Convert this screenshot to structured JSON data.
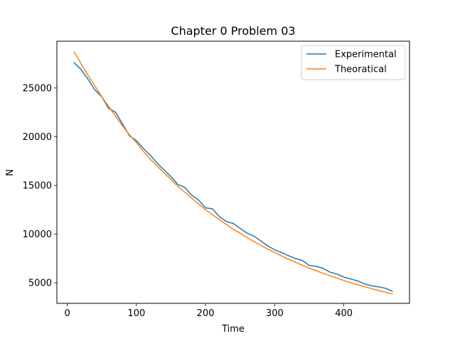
{
  "chart_data": {
    "type": "line",
    "title": "Chapter 0 Problem 03",
    "xlabel": "Time",
    "ylabel": "N",
    "xlim": [
      -15,
      495
    ],
    "ylim": [
      2900,
      29800
    ],
    "xticks": [
      0,
      100,
      200,
      300,
      400
    ],
    "yticks": [
      5000,
      10000,
      15000,
      20000,
      25000
    ],
    "grid": false,
    "legend_position": "top-right",
    "series": [
      {
        "name": "Experimental",
        "color": "#1f77b4",
        "x": [
          10,
          20,
          30,
          40,
          50,
          60,
          70,
          80,
          90,
          100,
          110,
          120,
          130,
          140,
          150,
          160,
          170,
          180,
          190,
          200,
          210,
          220,
          230,
          240,
          250,
          260,
          270,
          280,
          290,
          300,
          310,
          320,
          330,
          340,
          350,
          360,
          370,
          380,
          390,
          400,
          410,
          420,
          430,
          440,
          450,
          460,
          470
        ],
        "values": [
          27600,
          26900,
          25900,
          24800,
          24100,
          22900,
          22500,
          21300,
          20100,
          19600,
          18800,
          18100,
          17300,
          16600,
          15900,
          15100,
          14800,
          14000,
          13500,
          12700,
          12600,
          11800,
          11300,
          11100,
          10600,
          10100,
          9800,
          9300,
          8800,
          8400,
          8100,
          7800,
          7500,
          7300,
          6800,
          6700,
          6500,
          6100,
          5900,
          5600,
          5400,
          5200,
          4900,
          4700,
          4600,
          4450,
          4150
        ]
      },
      {
        "name": "Theoratical",
        "color": "#ff7f0e",
        "x": [
          10,
          20,
          30,
          40,
          50,
          60,
          70,
          80,
          90,
          100,
          110,
          120,
          130,
          140,
          150,
          160,
          170,
          180,
          190,
          200,
          210,
          220,
          230,
          240,
          250,
          260,
          270,
          280,
          290,
          300,
          310,
          320,
          330,
          340,
          350,
          360,
          370,
          380,
          390,
          400,
          410,
          420,
          430,
          440,
          450,
          460,
          470
        ],
        "values": [
          28700,
          27500,
          26300,
          25200,
          24100,
          23100,
          22100,
          21100,
          20200,
          19400,
          18500,
          17700,
          17000,
          16300,
          15600,
          14900,
          14300,
          13700,
          13100,
          12500,
          12000,
          11500,
          11000,
          10500,
          10100,
          9650,
          9240,
          8850,
          8470,
          8110,
          7760,
          7430,
          7120,
          6810,
          6520,
          6250,
          5980,
          5730,
          5480,
          5250,
          5030,
          4810,
          4610,
          4410,
          4220,
          4040,
          3870
        ]
      }
    ]
  }
}
